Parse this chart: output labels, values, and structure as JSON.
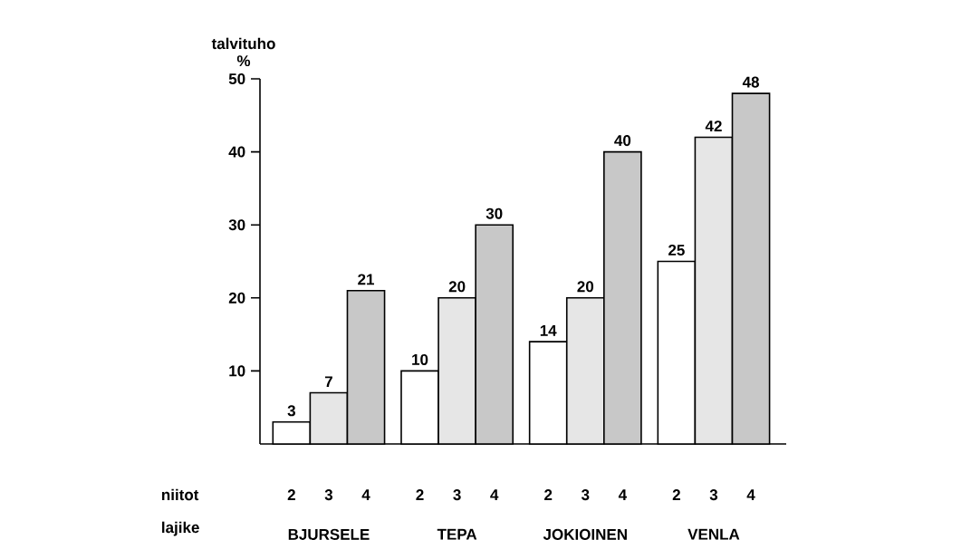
{
  "chart_data": {
    "type": "bar",
    "ylabel": "talvituho %",
    "xlabel": "lajike",
    "legend_title": "niitot",
    "categories": [
      "BJURSELE",
      "TEPA",
      "JOKIOINEN",
      "VENLA"
    ],
    "series": [
      {
        "name": "2",
        "color": "#ffffff",
        "values": [
          3,
          10,
          14,
          25
        ]
      },
      {
        "name": "3",
        "color": "#e6e6e6",
        "values": [
          7,
          20,
          20,
          42
        ]
      },
      {
        "name": "4",
        "color": "#c8c8c8",
        "values": [
          21,
          30,
          40,
          48
        ]
      }
    ],
    "ylim": [
      0,
      50
    ],
    "yticks": [
      10,
      20,
      30,
      40,
      50
    ],
    "data_labels": true
  }
}
